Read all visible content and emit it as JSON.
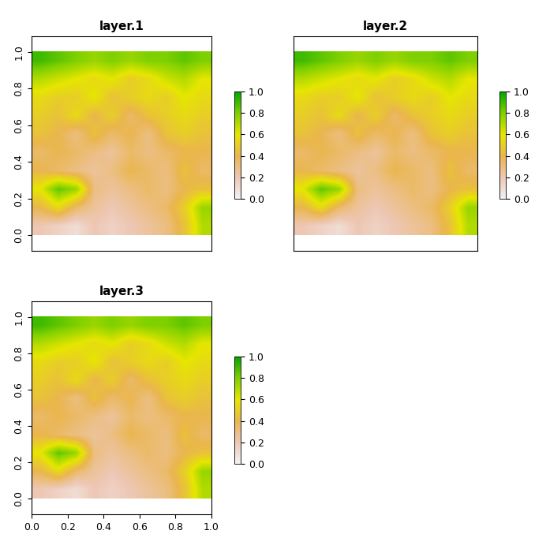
{
  "chart_data": [
    {
      "type": "heatmap",
      "title": "layer.1",
      "tick_labels": "y",
      "xlim": [
        0.0,
        1.0
      ],
      "ylim": [
        -0.086,
        1.086
      ],
      "xticks": [
        0.0,
        0.2,
        0.4,
        0.6,
        0.8,
        1.0
      ],
      "yticks": [
        0.0,
        0.2,
        0.4,
        0.6,
        0.8,
        1.0
      ],
      "extent": [
        0.0,
        1.0,
        0.0,
        1.0
      ],
      "cells": [
        [
          0.9,
          0.85,
          0.8,
          0.75,
          0.8,
          0.75,
          0.8,
          0.8,
          0.85,
          0.8
        ],
        [
          0.7,
          0.65,
          0.6,
          0.55,
          0.6,
          0.5,
          0.55,
          0.65,
          0.7,
          0.6
        ],
        [
          0.55,
          0.5,
          0.5,
          0.6,
          0.45,
          0.5,
          0.55,
          0.5,
          0.6,
          0.55
        ],
        [
          0.5,
          0.45,
          0.55,
          0.4,
          0.5,
          0.35,
          0.45,
          0.5,
          0.55,
          0.5
        ],
        [
          0.45,
          0.4,
          0.3,
          0.45,
          0.35,
          0.4,
          0.3,
          0.45,
          0.5,
          0.45
        ],
        [
          0.35,
          0.4,
          0.35,
          0.3,
          0.25,
          0.35,
          0.3,
          0.35,
          0.4,
          0.4
        ],
        [
          0.4,
          0.35,
          0.3,
          0.25,
          0.3,
          0.4,
          0.35,
          0.3,
          0.45,
          0.35
        ],
        [
          0.6,
          0.85,
          0.75,
          0.3,
          0.25,
          0.3,
          0.35,
          0.3,
          0.4,
          0.45
        ],
        [
          0.4,
          0.55,
          0.35,
          0.25,
          0.2,
          0.25,
          0.3,
          0.35,
          0.5,
          0.75
        ],
        [
          0.2,
          0.15,
          0.1,
          0.2,
          0.15,
          0.2,
          0.25,
          0.3,
          0.45,
          0.7
        ]
      ],
      "colorbar_range": [
        0.0,
        1.0
      ],
      "colorbar_ticks": [
        0.0,
        0.2,
        0.4,
        0.6,
        0.8,
        1.0
      ]
    },
    {
      "type": "heatmap",
      "title": "layer.2",
      "tick_labels": false,
      "xlim": [
        0.0,
        1.0
      ],
      "ylim": [
        -0.086,
        1.086
      ],
      "xticks": [
        0.0,
        0.2,
        0.4,
        0.6,
        0.8,
        1.0
      ],
      "yticks": [
        0.0,
        0.2,
        0.4,
        0.6,
        0.8,
        1.0
      ],
      "extent": [
        0.0,
        1.0,
        0.0,
        1.0
      ],
      "cells": [
        [
          0.9,
          0.85,
          0.8,
          0.75,
          0.8,
          0.75,
          0.8,
          0.8,
          0.85,
          0.8
        ],
        [
          0.7,
          0.65,
          0.6,
          0.55,
          0.6,
          0.5,
          0.55,
          0.65,
          0.7,
          0.6
        ],
        [
          0.55,
          0.5,
          0.5,
          0.6,
          0.45,
          0.5,
          0.55,
          0.5,
          0.6,
          0.55
        ],
        [
          0.5,
          0.45,
          0.55,
          0.4,
          0.5,
          0.35,
          0.45,
          0.5,
          0.55,
          0.5
        ],
        [
          0.45,
          0.4,
          0.3,
          0.45,
          0.35,
          0.4,
          0.3,
          0.45,
          0.5,
          0.45
        ],
        [
          0.35,
          0.4,
          0.35,
          0.3,
          0.25,
          0.35,
          0.3,
          0.35,
          0.4,
          0.4
        ],
        [
          0.4,
          0.35,
          0.3,
          0.25,
          0.3,
          0.4,
          0.35,
          0.3,
          0.45,
          0.35
        ],
        [
          0.6,
          0.85,
          0.75,
          0.3,
          0.25,
          0.3,
          0.35,
          0.3,
          0.4,
          0.45
        ],
        [
          0.4,
          0.55,
          0.35,
          0.25,
          0.2,
          0.25,
          0.3,
          0.35,
          0.5,
          0.75
        ],
        [
          0.2,
          0.15,
          0.1,
          0.2,
          0.15,
          0.2,
          0.25,
          0.3,
          0.45,
          0.7
        ]
      ],
      "colorbar_range": [
        0.0,
        1.0
      ],
      "colorbar_ticks": [
        0.0,
        0.2,
        0.4,
        0.6,
        0.8,
        1.0
      ]
    },
    {
      "type": "heatmap",
      "title": "layer.3",
      "xlim": [
        0.0,
        1.0
      ],
      "ylim": [
        -0.086,
        1.086
      ],
      "xticks": [
        0.0,
        0.2,
        0.4,
        0.6,
        0.8,
        1.0
      ],
      "yticks": [
        0.0,
        0.2,
        0.4,
        0.6,
        0.8,
        1.0
      ],
      "extent": [
        0.0,
        1.0,
        0.0,
        1.0
      ],
      "cells": [
        [
          0.9,
          0.85,
          0.8,
          0.75,
          0.8,
          0.75,
          0.8,
          0.8,
          0.85,
          0.8
        ],
        [
          0.7,
          0.65,
          0.6,
          0.55,
          0.6,
          0.5,
          0.55,
          0.65,
          0.7,
          0.6
        ],
        [
          0.55,
          0.5,
          0.5,
          0.6,
          0.45,
          0.5,
          0.55,
          0.5,
          0.6,
          0.55
        ],
        [
          0.5,
          0.45,
          0.55,
          0.4,
          0.5,
          0.35,
          0.45,
          0.5,
          0.55,
          0.5
        ],
        [
          0.45,
          0.4,
          0.3,
          0.45,
          0.35,
          0.4,
          0.3,
          0.45,
          0.5,
          0.45
        ],
        [
          0.35,
          0.4,
          0.35,
          0.3,
          0.25,
          0.35,
          0.3,
          0.35,
          0.4,
          0.4
        ],
        [
          0.4,
          0.35,
          0.3,
          0.25,
          0.3,
          0.4,
          0.35,
          0.3,
          0.45,
          0.35
        ],
        [
          0.6,
          0.85,
          0.75,
          0.3,
          0.25,
          0.3,
          0.35,
          0.3,
          0.4,
          0.45
        ],
        [
          0.4,
          0.55,
          0.35,
          0.25,
          0.2,
          0.25,
          0.3,
          0.35,
          0.5,
          0.75
        ],
        [
          0.2,
          0.15,
          0.1,
          0.2,
          0.15,
          0.2,
          0.25,
          0.3,
          0.45,
          0.7
        ]
      ],
      "colorbar_range": [
        0.0,
        1.0
      ],
      "colorbar_ticks": [
        0.0,
        0.2,
        0.4,
        0.6,
        0.8,
        1.0
      ]
    }
  ]
}
